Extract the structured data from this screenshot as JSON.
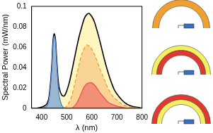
{
  "chart_data": {
    "type": "line",
    "x_label": "λ (nm)",
    "y_label": "Spectral Power (mW/nm)",
    "x": [
      360,
      380,
      400,
      420,
      430,
      440,
      445,
      450,
      455,
      460,
      465,
      470,
      480,
      490,
      500,
      510,
      520,
      530,
      540,
      550,
      560,
      570,
      580,
      590,
      600,
      610,
      620,
      630,
      640,
      650,
      660,
      670,
      680,
      690,
      700,
      720,
      740,
      760,
      780,
      800
    ],
    "series": [
      {
        "color": "#000000",
        "type": "area",
        "line_style": "solid",
        "values": [
          0,
          0,
          0.001,
          0.004,
          0.012,
          0.04,
          0.065,
          0.073,
          0.068,
          0.048,
          0.03,
          0.02,
          0.013,
          0.012,
          0.017,
          0.025,
          0.036,
          0.048,
          0.06,
          0.071,
          0.08,
          0.088,
          0.092,
          0.093,
          0.09,
          0.085,
          0.077,
          0.068,
          0.058,
          0.048,
          0.039,
          0.031,
          0.024,
          0.018,
          0.014,
          0.008,
          0.004,
          0.002,
          0.001,
          0
        ]
      },
      {
        "color": "#e69a2e",
        "type": "area",
        "line_style": "dashed",
        "values": [
          null,
          null,
          null,
          null,
          null,
          null,
          null,
          null,
          null,
          null,
          null,
          null,
          null,
          0,
          0.002,
          0.006,
          0.012,
          0.022,
          0.033,
          0.044,
          0.053,
          0.059,
          0.062,
          0.061,
          0.058,
          0.053,
          0.047,
          0.04,
          0.034,
          0.028,
          0.022,
          0.017,
          0.013,
          0.01,
          0.008,
          0.004,
          0.002,
          0.001,
          0.0005,
          0
        ]
      },
      {
        "color": "#e8504a",
        "type": "area",
        "line_style": "solid",
        "values": [
          null,
          null,
          null,
          null,
          null,
          null,
          null,
          null,
          null,
          null,
          null,
          null,
          null,
          null,
          null,
          null,
          0,
          0.002,
          0.005,
          0.01,
          0.016,
          0.021,
          0.024,
          0.025,
          0.025,
          0.023,
          0.02,
          0.016,
          0.013,
          0.01,
          0.007,
          0.005,
          0.004,
          0.003,
          0.002,
          0.001,
          0,
          null,
          null,
          null
        ]
      },
      {
        "color": "#4a7fc8",
        "type": "area",
        "line_style": "solid",
        "values": [
          null,
          null,
          0,
          0.002,
          0.01,
          0.037,
          0.062,
          0.071,
          0.066,
          0.045,
          0.025,
          0.012,
          0.003,
          0,
          null,
          null,
          null,
          null,
          null,
          null,
          null,
          null,
          null,
          null,
          null,
          null,
          null,
          null,
          null,
          null,
          null,
          null,
          null,
          null,
          null,
          null,
          null,
          null,
          null,
          null
        ]
      }
    ],
    "xlim": [
      360,
      800
    ],
    "xticks": [
      400,
      500,
      600,
      700,
      800
    ],
    "ylim": [
      0,
      0.1
    ],
    "yticks": [
      0,
      0.02,
      0.04,
      0.06,
      0.08,
      0.1
    ],
    "grid": false
  }
}
